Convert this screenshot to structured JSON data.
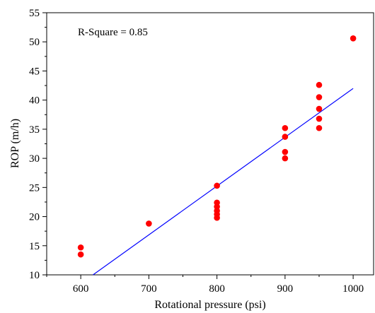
{
  "chart_data": {
    "type": "scatter",
    "xlabel": "Rotational pressure (psi)",
    "ylabel": "ROP (m/h)",
    "xlim": [
      550,
      1030
    ],
    "ylim": [
      10,
      55
    ],
    "x_ticks": [
      600,
      700,
      800,
      900,
      1000
    ],
    "y_ticks": [
      10,
      15,
      20,
      25,
      30,
      35,
      40,
      45,
      50,
      55
    ],
    "annotation": "R-Square = 0.85",
    "series": [
      {
        "type": "scatter",
        "color": "#ff0000",
        "points": [
          [
            600,
            14.7
          ],
          [
            600,
            13.5
          ],
          [
            700,
            18.8
          ],
          [
            800,
            25.3
          ],
          [
            800,
            22.4
          ],
          [
            800,
            21.7
          ],
          [
            800,
            21.0
          ],
          [
            800,
            20.4
          ],
          [
            800,
            19.8
          ],
          [
            900,
            35.2
          ],
          [
            900,
            33.7
          ],
          [
            900,
            31.1
          ],
          [
            900,
            30.0
          ],
          [
            950,
            42.6
          ],
          [
            950,
            40.5
          ],
          [
            950,
            38.5
          ],
          [
            950,
            36.8
          ],
          [
            950,
            35.2
          ],
          [
            1000,
            50.6
          ]
        ]
      },
      {
        "type": "line",
        "color": "#0000ff",
        "points": [
          [
            618,
            10.0
          ],
          [
            1000,
            42.0
          ]
        ]
      }
    ]
  }
}
